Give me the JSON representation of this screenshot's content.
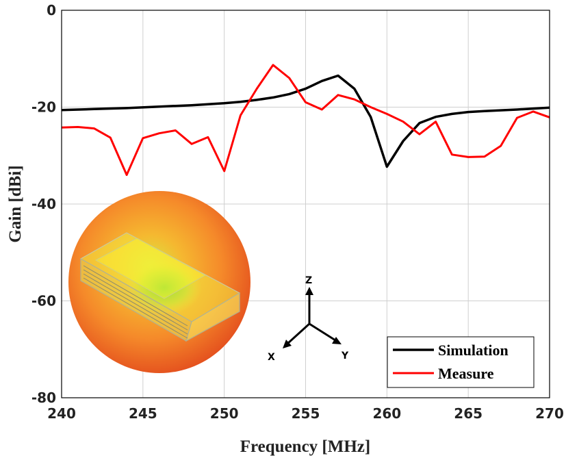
{
  "chart_data": {
    "type": "line",
    "xlabel": "Frequency [MHz]",
    "ylabel": "Gain [dBi]",
    "xlim": [
      240,
      270
    ],
    "ylim": [
      -80,
      0
    ],
    "xticks": [
      "240",
      "245",
      "250",
      "255",
      "260",
      "265",
      "270"
    ],
    "yticks": [
      "0",
      "-20",
      "-40",
      "-60",
      "-80"
    ],
    "grid": true,
    "legend_position": "bottom-right",
    "series": [
      {
        "name": "Simulation",
        "color": "#000000",
        "x": [
          240,
          242,
          244,
          246,
          248,
          250,
          251,
          252,
          253,
          254,
          255,
          256,
          257,
          258,
          259,
          260,
          261,
          262,
          263,
          264,
          265,
          266,
          268,
          270
        ],
        "y": [
          -20.6,
          -20.4,
          -20.2,
          -19.9,
          -19.6,
          -19.2,
          -18.9,
          -18.5,
          -18.0,
          -17.3,
          -16.2,
          -14.6,
          -13.5,
          -16.2,
          -22.0,
          -32.3,
          -27.0,
          -23.3,
          -22.0,
          -21.4,
          -21.0,
          -20.8,
          -20.5,
          -20.1
        ]
      },
      {
        "name": "Measure",
        "color": "#ff0000",
        "x": [
          240,
          241,
          242,
          243,
          244,
          245,
          246,
          247,
          248,
          249,
          250,
          251,
          252,
          253,
          254,
          255,
          256,
          257,
          258,
          259,
          260,
          261,
          262,
          263,
          264,
          265,
          266,
          267,
          268,
          269,
          270
        ],
        "y": [
          -24.2,
          -24.1,
          -24.4,
          -26.3,
          -34.0,
          -26.4,
          -25.4,
          -24.8,
          -27.6,
          -26.2,
          -33.2,
          -21.7,
          -16.2,
          -11.3,
          -14.0,
          -19.0,
          -20.5,
          -17.5,
          -18.4,
          -20.0,
          -21.4,
          -23.0,
          -25.6,
          -23.0,
          -29.8,
          -30.3,
          -30.2,
          -28.0,
          -22.2,
          -20.9,
          -22.1
        ]
      }
    ]
  },
  "inset": {
    "axis_z": "Z",
    "axis_x": "X",
    "axis_y": "Y"
  }
}
